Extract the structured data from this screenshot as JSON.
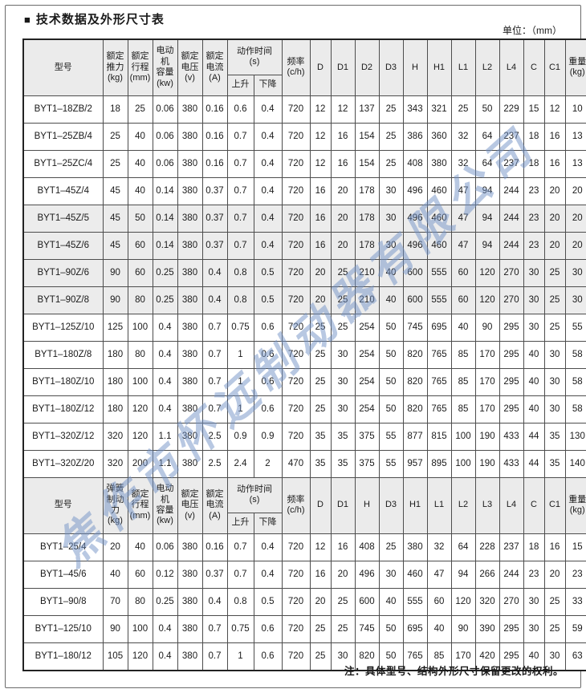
{
  "page": {
    "title_bullet": "■",
    "title": "技术数据及外形尺寸表",
    "unit_note": "单位：（mm）",
    "footer_note": "注：具体型号、结构外形尺寸保留更改的权利。",
    "watermark": "焦作市怀远制动器有限公司",
    "colors": {
      "header_bg": "#ebebeb",
      "shaded_row_bg": "#ececec",
      "table_border": "#4d4d4d",
      "watermark_blue": "#7292c6"
    }
  },
  "table": {
    "sections": [
      {
        "header_row1": [
          {
            "label": "型号",
            "rowspan": 2
          },
          {
            "label": "额定\n推力\n(kg)",
            "rowspan": 2
          },
          {
            "label": "额定\n行程\n(mm)",
            "rowspan": 2
          },
          {
            "label": "电动机\n容量\n(kw)",
            "rowspan": 2
          },
          {
            "label": "额定\n电压\n(v)",
            "rowspan": 2
          },
          {
            "label": "额定\n电流\n(A)",
            "rowspan": 2
          },
          {
            "label": "动作时间\n(s)",
            "colspan": 2
          },
          {
            "label": "频率\n(c/h)",
            "rowspan": 2
          },
          {
            "label": "D",
            "rowspan": 2
          },
          {
            "label": "D1",
            "rowspan": 2
          },
          {
            "label": "D2",
            "rowspan": 2
          },
          {
            "label": "D3",
            "rowspan": 2
          },
          {
            "label": "H",
            "rowspan": 2
          },
          {
            "label": "H1",
            "rowspan": 2
          },
          {
            "label": "L1",
            "rowspan": 2
          },
          {
            "label": "L2",
            "rowspan": 2
          },
          {
            "label": "L4",
            "rowspan": 2
          },
          {
            "label": "C",
            "rowspan": 2
          },
          {
            "label": "C1",
            "rowspan": 2
          },
          {
            "label": "重量\n(kg)",
            "rowspan": 2
          }
        ],
        "header_row2": [
          {
            "label": "上升"
          },
          {
            "label": "下降"
          }
        ],
        "rows": [
          {
            "model": "BYT1–18ZB/2",
            "shaded": false,
            "values": [
              "18",
              "25",
              "0.06",
              "380",
              "0.16",
              "0.6",
              "0.4",
              "720",
              "12",
              "12",
              "137",
              "25",
              "343",
              "321",
              "25",
              "50",
              "229",
              "15",
              "12",
              "10"
            ]
          },
          {
            "model": "BYT1–25ZB/4",
            "shaded": false,
            "values": [
              "25",
              "40",
              "0.06",
              "380",
              "0.16",
              "0.7",
              "0.4",
              "720",
              "12",
              "16",
              "154",
              "25",
              "386",
              "360",
              "32",
              "64",
              "237",
              "18",
              "16",
              "13"
            ]
          },
          {
            "model": "BYT1–25ZC/4",
            "shaded": false,
            "values": [
              "25",
              "40",
              "0.06",
              "380",
              "0.16",
              "0.7",
              "0.4",
              "720",
              "12",
              "16",
              "154",
              "25",
              "408",
              "380",
              "32",
              "64",
              "237",
              "18",
              "16",
              "13"
            ]
          },
          {
            "model": "BYT1–45Z/4",
            "shaded": false,
            "values": [
              "45",
              "40",
              "0.14",
              "380",
              "0.37",
              "0.7",
              "0.4",
              "720",
              "16",
              "20",
              "178",
              "30",
              "496",
              "460",
              "47",
              "94",
              "244",
              "23",
              "20",
              "20"
            ]
          },
          {
            "model": "BYT1–45Z/5",
            "shaded": true,
            "values": [
              "45",
              "50",
              "0.14",
              "380",
              "0.37",
              "0.7",
              "0.4",
              "720",
              "16",
              "20",
              "178",
              "30",
              "496",
              "460",
              "47",
              "94",
              "244",
              "23",
              "20",
              "20"
            ]
          },
          {
            "model": "BYT1–45Z/6",
            "shaded": true,
            "values": [
              "45",
              "60",
              "0.14",
              "380",
              "0.37",
              "0.7",
              "0.4",
              "720",
              "16",
              "20",
              "178",
              "30",
              "496",
              "460",
              "47",
              "94",
              "244",
              "23",
              "20",
              "20"
            ]
          },
          {
            "model": "BYT1–90Z/6",
            "shaded": true,
            "values": [
              "90",
              "60",
              "0.25",
              "380",
              "0.4",
              "0.8",
              "0.5",
              "720",
              "20",
              "25",
              "210",
              "40",
              "600",
              "555",
              "60",
              "120",
              "270",
              "30",
              "25",
              "30"
            ]
          },
          {
            "model": "BYT1–90Z/8",
            "shaded": true,
            "values": [
              "90",
              "80",
              "0.25",
              "380",
              "0.4",
              "0.8",
              "0.5",
              "720",
              "20",
              "25",
              "210",
              "40",
              "600",
              "555",
              "60",
              "120",
              "270",
              "30",
              "25",
              "30"
            ]
          },
          {
            "model": "BYT1–125Z/10",
            "shaded": false,
            "values": [
              "125",
              "100",
              "0.4",
              "380",
              "0.7",
              "0.75",
              "0.6",
              "720",
              "25",
              "25",
              "254",
              "50",
              "745",
              "695",
              "40",
              "90",
              "295",
              "30",
              "25",
              "55"
            ]
          },
          {
            "model": "BYT1–180Z/8",
            "shaded": false,
            "values": [
              "180",
              "80",
              "0.4",
              "380",
              "0.7",
              "1",
              "0.6",
              "720",
              "25",
              "30",
              "254",
              "50",
              "820",
              "765",
              "85",
              "170",
              "295",
              "40",
              "30",
              "58"
            ]
          },
          {
            "model": "BYT1–180Z/10",
            "shaded": false,
            "values": [
              "180",
              "100",
              "0.4",
              "380",
              "0.7",
              "1",
              "0.6",
              "720",
              "25",
              "30",
              "254",
              "50",
              "820",
              "765",
              "85",
              "170",
              "295",
              "40",
              "30",
              "58"
            ]
          },
          {
            "model": "BYT1–180Z/12",
            "shaded": false,
            "values": [
              "180",
              "120",
              "0.4",
              "380",
              "0.7",
              "1",
              "0.6",
              "720",
              "25",
              "30",
              "254",
              "50",
              "820",
              "765",
              "85",
              "170",
              "295",
              "40",
              "30",
              "58"
            ]
          },
          {
            "model": "BYT1–320Z/12",
            "shaded": false,
            "values": [
              "320",
              "120",
              "1.1",
              "380",
              "2.5",
              "0.9",
              "0.9",
              "720",
              "35",
              "35",
              "375",
              "55",
              "877",
              "815",
              "100",
              "190",
              "433",
              "44",
              "35",
              "130"
            ]
          },
          {
            "model": "BYT1–320Z/20",
            "shaded": false,
            "values": [
              "320",
              "200",
              "1.1",
              "380",
              "2.5",
              "2.4",
              "2",
              "470",
              "35",
              "35",
              "375",
              "55",
              "957",
              "895",
              "100",
              "190",
              "433",
              "44",
              "35",
              "140"
            ]
          }
        ]
      },
      {
        "header_row1": [
          {
            "label": "型号",
            "rowspan": 2
          },
          {
            "label": "弹簧\n制动力\n(kg)",
            "rowspan": 2
          },
          {
            "label": "额定\n行程\n(mm)",
            "rowspan": 2
          },
          {
            "label": "电动机\n容量\n(kw)",
            "rowspan": 2
          },
          {
            "label": "额定\n电压\n(v)",
            "rowspan": 2
          },
          {
            "label": "额定\n电流\n(A)",
            "rowspan": 2
          },
          {
            "label": "动作时间\n(s)",
            "colspan": 2
          },
          {
            "label": "频率\n(c/h)",
            "rowspan": 2
          },
          {
            "label": "D",
            "rowspan": 2
          },
          {
            "label": "D1",
            "rowspan": 2
          },
          {
            "label": "H",
            "rowspan": 2
          },
          {
            "label": "D3",
            "rowspan": 2
          },
          {
            "label": "H1",
            "rowspan": 2
          },
          {
            "label": "L1",
            "rowspan": 2
          },
          {
            "label": "L2",
            "rowspan": 2
          },
          {
            "label": "L3",
            "rowspan": 2
          },
          {
            "label": "L4",
            "rowspan": 2
          },
          {
            "label": "C",
            "rowspan": 2
          },
          {
            "label": "C1",
            "rowspan": 2
          },
          {
            "label": "重量\n(kg)",
            "rowspan": 2
          }
        ],
        "header_row2": [
          {
            "label": "上升"
          },
          {
            "label": "下降"
          }
        ],
        "rows": [
          {
            "model": "BYT1–25/4",
            "shaded": false,
            "values": [
              "20",
              "40",
              "0.06",
              "380",
              "0.16",
              "0.7",
              "0.4",
              "720",
              "12",
              "16",
              "408",
              "25",
              "380",
              "32",
              "64",
              "228",
              "237",
              "18",
              "16",
              "15"
            ]
          },
          {
            "model": "BYT1–45/6",
            "shaded": false,
            "values": [
              "40",
              "60",
              "0.12",
              "380",
              "0.37",
              "0.7",
              "0.4",
              "720",
              "16",
              "20",
              "496",
              "30",
              "460",
              "47",
              "94",
              "266",
              "244",
              "23",
              "20",
              "23"
            ]
          },
          {
            "model": "BYT1–90/8",
            "shaded": false,
            "values": [
              "70",
              "80",
              "0.25",
              "380",
              "0.4",
              "0.8",
              "0.5",
              "720",
              "20",
              "25",
              "600",
              "40",
              "555",
              "60",
              "120",
              "320",
              "270",
              "30",
              "25",
              "33"
            ]
          },
          {
            "model": "BYT1–125/10",
            "shaded": false,
            "values": [
              "90",
              "100",
              "0.4",
              "380",
              "0.7",
              "0.75",
              "0.6",
              "720",
              "25",
              "25",
              "745",
              "50",
              "695",
              "40",
              "90",
              "390",
              "295",
              "30",
              "25",
              "59"
            ]
          },
          {
            "model": "BYT1–180/12",
            "shaded": false,
            "values": [
              "105",
              "120",
              "0.4",
              "380",
              "0.7",
              "1",
              "0.6",
              "720",
              "25",
              "30",
              "820",
              "50",
              "765",
              "85",
              "170",
              "420",
              "295",
              "40",
              "30",
              "63"
            ]
          }
        ]
      }
    ]
  }
}
